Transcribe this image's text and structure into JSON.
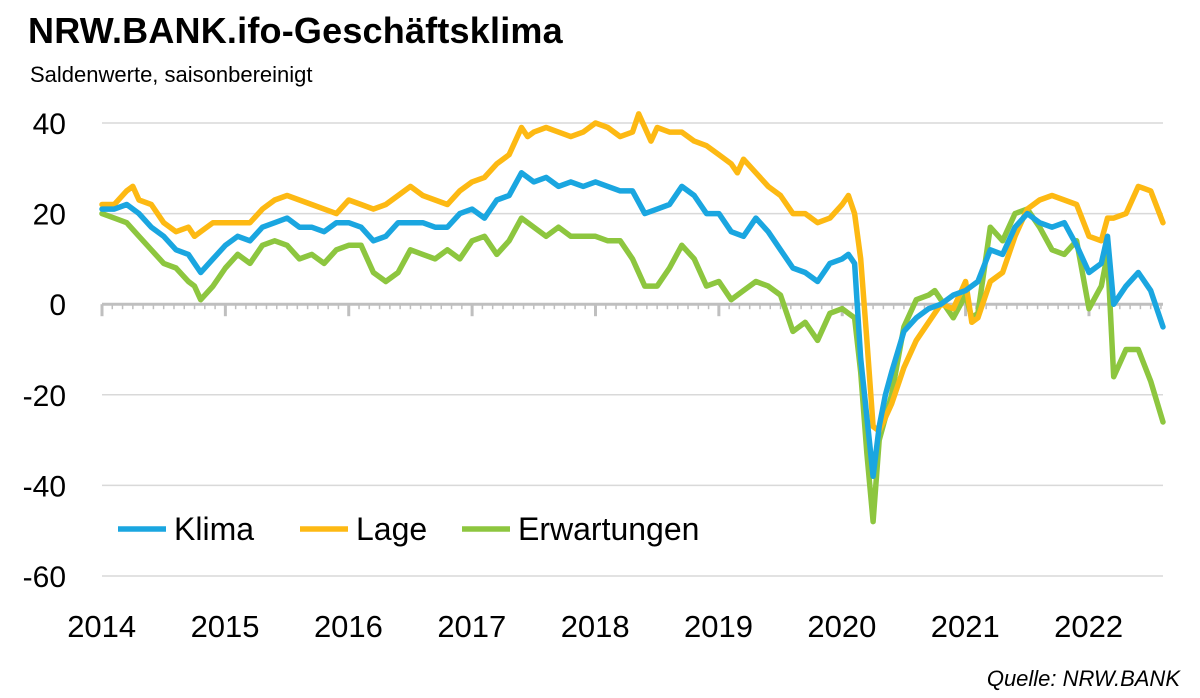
{
  "title": "NRW.BANK.ifo-Geschäftsklima",
  "subtitle": "Saldenwerte, saisonbereinigt",
  "source": "Quelle: NRW.BANK",
  "chart_data": {
    "type": "line",
    "ylim": [
      -60,
      40
    ],
    "yticks": [
      "40",
      "20",
      "0",
      "-20",
      "-40",
      "-60"
    ],
    "ytick_values": [
      40,
      20,
      0,
      -20,
      -40,
      -60
    ],
    "xlim": [
      2014,
      2022.6
    ],
    "xticks": [
      "2014",
      "2015",
      "2016",
      "2017",
      "2018",
      "2019",
      "2020",
      "2021",
      "2022"
    ],
    "xtick_values": [
      2014,
      2015,
      2016,
      2017,
      2018,
      2019,
      2020,
      2021,
      2022
    ],
    "grid": true,
    "legend_position": "bottom-left",
    "series": [
      {
        "name": "Klima",
        "color": "#1aa6e0",
        "points": [
          [
            2014.0,
            21
          ],
          [
            2014.1,
            21
          ],
          [
            2014.2,
            22
          ],
          [
            2014.3,
            20
          ],
          [
            2014.4,
            17
          ],
          [
            2014.5,
            15
          ],
          [
            2014.6,
            12
          ],
          [
            2014.7,
            11
          ],
          [
            2014.8,
            7
          ],
          [
            2014.9,
            10
          ],
          [
            2015.0,
            13
          ],
          [
            2015.1,
            15
          ],
          [
            2015.2,
            14
          ],
          [
            2015.3,
            17
          ],
          [
            2015.4,
            18
          ],
          [
            2015.5,
            19
          ],
          [
            2015.6,
            17
          ],
          [
            2015.7,
            17
          ],
          [
            2015.8,
            16
          ],
          [
            2015.9,
            18
          ],
          [
            2016.0,
            18
          ],
          [
            2016.1,
            17
          ],
          [
            2016.2,
            14
          ],
          [
            2016.3,
            15
          ],
          [
            2016.4,
            18
          ],
          [
            2016.5,
            18
          ],
          [
            2016.6,
            18
          ],
          [
            2016.7,
            17
          ],
          [
            2016.8,
            17
          ],
          [
            2016.9,
            20
          ],
          [
            2017.0,
            21
          ],
          [
            2017.1,
            19
          ],
          [
            2017.2,
            23
          ],
          [
            2017.3,
            24
          ],
          [
            2017.4,
            29
          ],
          [
            2017.5,
            27
          ],
          [
            2017.6,
            28
          ],
          [
            2017.7,
            26
          ],
          [
            2017.8,
            27
          ],
          [
            2017.9,
            26
          ],
          [
            2018.0,
            27
          ],
          [
            2018.1,
            26
          ],
          [
            2018.2,
            25
          ],
          [
            2018.3,
            25
          ],
          [
            2018.4,
            20
          ],
          [
            2018.5,
            21
          ],
          [
            2018.6,
            22
          ],
          [
            2018.7,
            26
          ],
          [
            2018.8,
            24
          ],
          [
            2018.9,
            20
          ],
          [
            2019.0,
            20
          ],
          [
            2019.1,
            16
          ],
          [
            2019.2,
            15
          ],
          [
            2019.3,
            19
          ],
          [
            2019.4,
            16
          ],
          [
            2019.5,
            12
          ],
          [
            2019.6,
            8
          ],
          [
            2019.7,
            7
          ],
          [
            2019.8,
            5
          ],
          [
            2019.9,
            9
          ],
          [
            2020.0,
            10
          ],
          [
            2020.05,
            11
          ],
          [
            2020.1,
            9
          ],
          [
            2020.15,
            -12
          ],
          [
            2020.2,
            -25
          ],
          [
            2020.25,
            -38
          ],
          [
            2020.3,
            -27
          ],
          [
            2020.35,
            -20
          ],
          [
            2020.4,
            -15
          ],
          [
            2020.5,
            -6
          ],
          [
            2020.6,
            -3
          ],
          [
            2020.7,
            -1
          ],
          [
            2020.8,
            0
          ],
          [
            2020.9,
            2
          ],
          [
            2021.0,
            3
          ],
          [
            2021.1,
            5
          ],
          [
            2021.2,
            12
          ],
          [
            2021.3,
            11
          ],
          [
            2021.4,
            17
          ],
          [
            2021.5,
            20
          ],
          [
            2021.6,
            18
          ],
          [
            2021.7,
            17
          ],
          [
            2021.8,
            18
          ],
          [
            2021.9,
            13
          ],
          [
            2022.0,
            7
          ],
          [
            2022.1,
            9
          ],
          [
            2022.15,
            15
          ],
          [
            2022.2,
            0
          ],
          [
            2022.3,
            4
          ],
          [
            2022.4,
            7
          ],
          [
            2022.5,
            3
          ],
          [
            2022.6,
            -5
          ]
        ]
      },
      {
        "name": "Lage",
        "color": "#fdb913",
        "points": [
          [
            2014.0,
            22
          ],
          [
            2014.1,
            22
          ],
          [
            2014.2,
            25
          ],
          [
            2014.25,
            26
          ],
          [
            2014.3,
            23
          ],
          [
            2014.4,
            22
          ],
          [
            2014.5,
            18
          ],
          [
            2014.6,
            16
          ],
          [
            2014.7,
            17
          ],
          [
            2014.75,
            15
          ],
          [
            2014.8,
            16
          ],
          [
            2014.9,
            18
          ],
          [
            2015.0,
            18
          ],
          [
            2015.1,
            18
          ],
          [
            2015.2,
            18
          ],
          [
            2015.3,
            21
          ],
          [
            2015.4,
            23
          ],
          [
            2015.5,
            24
          ],
          [
            2015.6,
            23
          ],
          [
            2015.7,
            22
          ],
          [
            2015.8,
            21
          ],
          [
            2015.9,
            20
          ],
          [
            2016.0,
            23
          ],
          [
            2016.1,
            22
          ],
          [
            2016.2,
            21
          ],
          [
            2016.3,
            22
          ],
          [
            2016.4,
            24
          ],
          [
            2016.5,
            26
          ],
          [
            2016.6,
            24
          ],
          [
            2016.7,
            23
          ],
          [
            2016.8,
            22
          ],
          [
            2016.9,
            25
          ],
          [
            2017.0,
            27
          ],
          [
            2017.1,
            28
          ],
          [
            2017.2,
            31
          ],
          [
            2017.3,
            33
          ],
          [
            2017.4,
            39
          ],
          [
            2017.45,
            37
          ],
          [
            2017.5,
            38
          ],
          [
            2017.6,
            39
          ],
          [
            2017.7,
            38
          ],
          [
            2017.8,
            37
          ],
          [
            2017.9,
            38
          ],
          [
            2018.0,
            40
          ],
          [
            2018.1,
            39
          ],
          [
            2018.2,
            37
          ],
          [
            2018.3,
            38
          ],
          [
            2018.35,
            42
          ],
          [
            2018.45,
            36
          ],
          [
            2018.5,
            39
          ],
          [
            2018.6,
            38
          ],
          [
            2018.7,
            38
          ],
          [
            2018.8,
            36
          ],
          [
            2018.9,
            35
          ],
          [
            2019.0,
            33
          ],
          [
            2019.1,
            31
          ],
          [
            2019.15,
            29
          ],
          [
            2019.2,
            32
          ],
          [
            2019.3,
            29
          ],
          [
            2019.4,
            26
          ],
          [
            2019.5,
            24
          ],
          [
            2019.6,
            20
          ],
          [
            2019.7,
            20
          ],
          [
            2019.8,
            18
          ],
          [
            2019.9,
            19
          ],
          [
            2020.0,
            22
          ],
          [
            2020.05,
            24
          ],
          [
            2020.1,
            20
          ],
          [
            2020.15,
            10
          ],
          [
            2020.2,
            -8
          ],
          [
            2020.25,
            -27
          ],
          [
            2020.3,
            -28
          ],
          [
            2020.4,
            -22
          ],
          [
            2020.5,
            -14
          ],
          [
            2020.6,
            -8
          ],
          [
            2020.7,
            -4
          ],
          [
            2020.8,
            0
          ],
          [
            2020.9,
            -1
          ],
          [
            2021.0,
            5
          ],
          [
            2021.05,
            -4
          ],
          [
            2021.1,
            -3
          ],
          [
            2021.2,
            5
          ],
          [
            2021.3,
            7
          ],
          [
            2021.4,
            15
          ],
          [
            2021.5,
            21
          ],
          [
            2021.6,
            23
          ],
          [
            2021.7,
            24
          ],
          [
            2021.8,
            23
          ],
          [
            2021.9,
            22
          ],
          [
            2022.0,
            15
          ],
          [
            2022.1,
            14
          ],
          [
            2022.15,
            19
          ],
          [
            2022.2,
            19
          ],
          [
            2022.3,
            20
          ],
          [
            2022.4,
            26
          ],
          [
            2022.5,
            25
          ],
          [
            2022.6,
            18
          ]
        ]
      },
      {
        "name": "Erwartungen",
        "color": "#8dc63f",
        "points": [
          [
            2014.0,
            20
          ],
          [
            2014.1,
            19
          ],
          [
            2014.2,
            18
          ],
          [
            2014.3,
            15
          ],
          [
            2014.4,
            12
          ],
          [
            2014.5,
            9
          ],
          [
            2014.6,
            8
          ],
          [
            2014.7,
            5
          ],
          [
            2014.75,
            4
          ],
          [
            2014.8,
            1
          ],
          [
            2014.9,
            4
          ],
          [
            2015.0,
            8
          ],
          [
            2015.1,
            11
          ],
          [
            2015.2,
            9
          ],
          [
            2015.3,
            13
          ],
          [
            2015.4,
            14
          ],
          [
            2015.5,
            13
          ],
          [
            2015.6,
            10
          ],
          [
            2015.7,
            11
          ],
          [
            2015.8,
            9
          ],
          [
            2015.9,
            12
          ],
          [
            2016.0,
            13
          ],
          [
            2016.1,
            13
          ],
          [
            2016.2,
            7
          ],
          [
            2016.3,
            5
          ],
          [
            2016.4,
            7
          ],
          [
            2016.5,
            12
          ],
          [
            2016.6,
            11
          ],
          [
            2016.7,
            10
          ],
          [
            2016.8,
            12
          ],
          [
            2016.9,
            10
          ],
          [
            2017.0,
            14
          ],
          [
            2017.1,
            15
          ],
          [
            2017.2,
            11
          ],
          [
            2017.3,
            14
          ],
          [
            2017.4,
            19
          ],
          [
            2017.5,
            17
          ],
          [
            2017.6,
            15
          ],
          [
            2017.7,
            17
          ],
          [
            2017.8,
            15
          ],
          [
            2017.9,
            15
          ],
          [
            2018.0,
            15
          ],
          [
            2018.1,
            14
          ],
          [
            2018.2,
            14
          ],
          [
            2018.3,
            10
          ],
          [
            2018.4,
            4
          ],
          [
            2018.5,
            4
          ],
          [
            2018.6,
            8
          ],
          [
            2018.7,
            13
          ],
          [
            2018.8,
            10
          ],
          [
            2018.9,
            4
          ],
          [
            2019.0,
            5
          ],
          [
            2019.1,
            1
          ],
          [
            2019.2,
            3
          ],
          [
            2019.3,
            5
          ],
          [
            2019.4,
            4
          ],
          [
            2019.5,
            2
          ],
          [
            2019.6,
            -6
          ],
          [
            2019.7,
            -4
          ],
          [
            2019.8,
            -8
          ],
          [
            2019.9,
            -2
          ],
          [
            2020.0,
            -1
          ],
          [
            2020.05,
            -2
          ],
          [
            2020.1,
            -3
          ],
          [
            2020.15,
            -15
          ],
          [
            2020.2,
            -33
          ],
          [
            2020.25,
            -48
          ],
          [
            2020.3,
            -30
          ],
          [
            2020.4,
            -20
          ],
          [
            2020.5,
            -5
          ],
          [
            2020.6,
            1
          ],
          [
            2020.7,
            2
          ],
          [
            2020.75,
            3
          ],
          [
            2020.8,
            1
          ],
          [
            2020.9,
            -3
          ],
          [
            2021.0,
            2
          ],
          [
            2021.05,
            -3
          ],
          [
            2021.1,
            -2
          ],
          [
            2021.2,
            17
          ],
          [
            2021.3,
            14
          ],
          [
            2021.4,
            20
          ],
          [
            2021.5,
            21
          ],
          [
            2021.6,
            17
          ],
          [
            2021.7,
            12
          ],
          [
            2021.8,
            11
          ],
          [
            2021.9,
            14
          ],
          [
            2022.0,
            -1
          ],
          [
            2022.1,
            4
          ],
          [
            2022.15,
            11
          ],
          [
            2022.2,
            -16
          ],
          [
            2022.3,
            -10
          ],
          [
            2022.4,
            -10
          ],
          [
            2022.5,
            -17
          ],
          [
            2022.6,
            -26
          ]
        ]
      }
    ]
  }
}
